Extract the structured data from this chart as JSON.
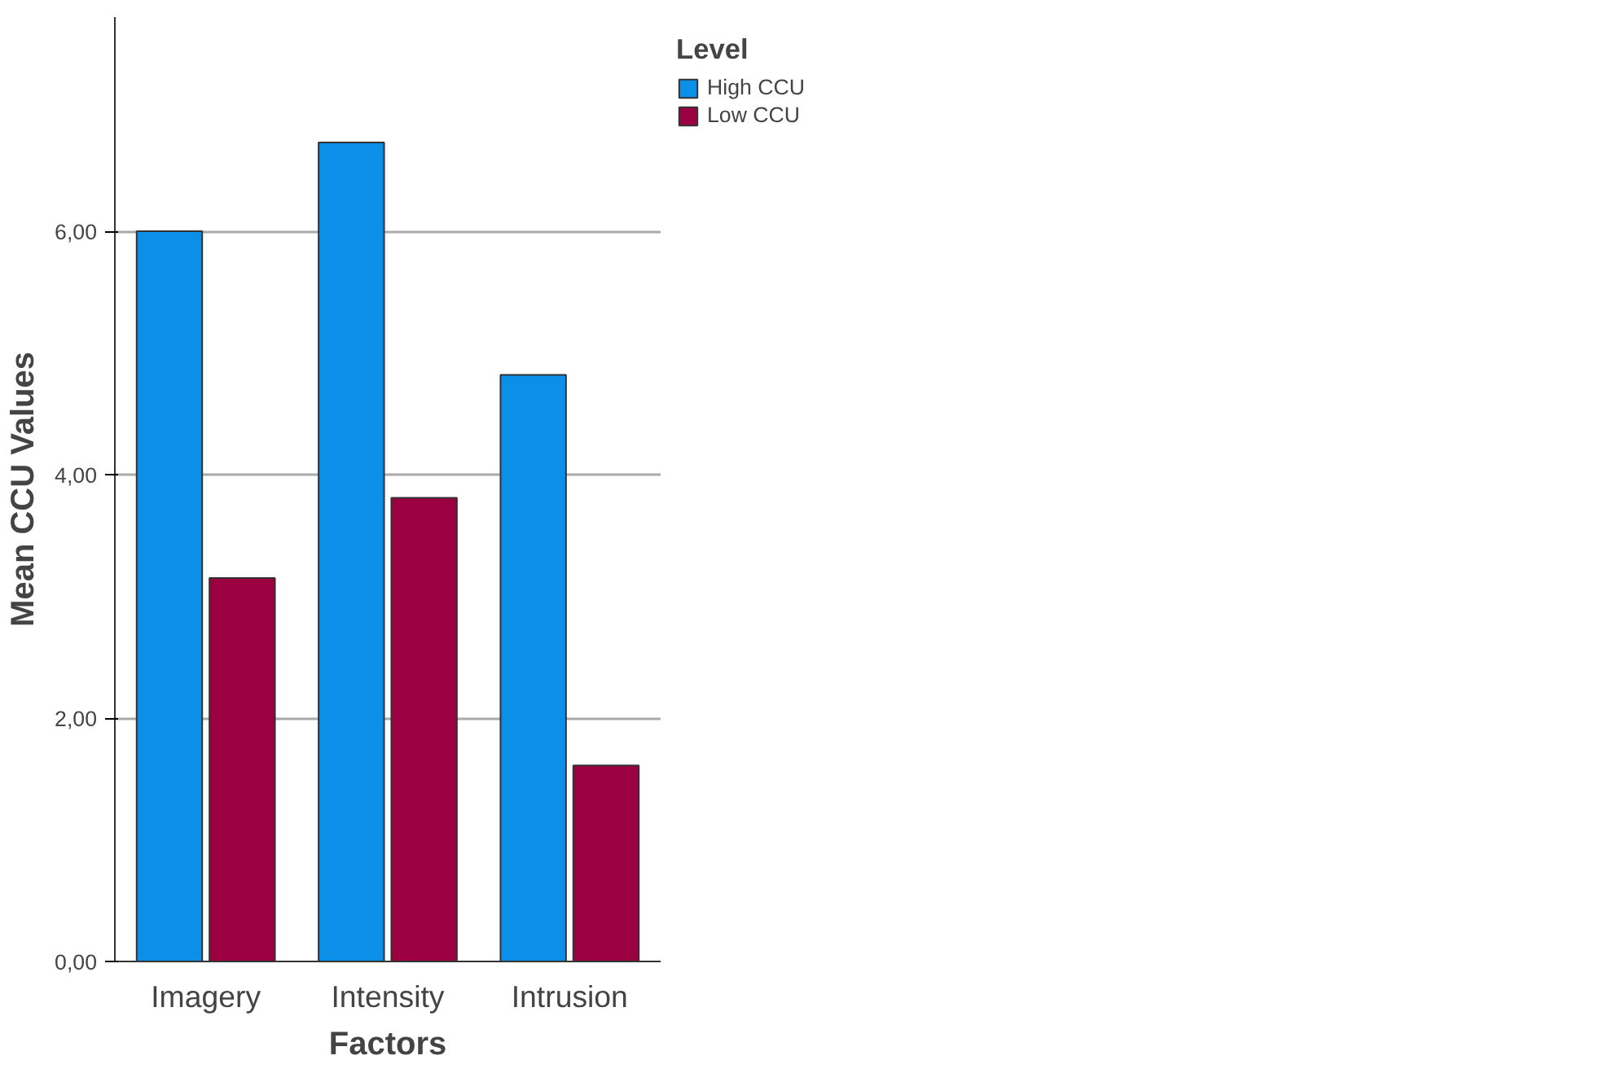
{
  "chart_data": {
    "type": "bar",
    "xlabel": "Factors",
    "ylabel": "Mean CCU Values",
    "legend_title": "Level",
    "categories": [
      "Imagery",
      "Intensity",
      "Intrusion"
    ],
    "series": [
      {
        "name": "High CCU",
        "color": "#0b8fe8",
        "values": [
          6.0,
          6.73,
          4.82
        ]
      },
      {
        "name": "Low CCU",
        "color": "#9b0041",
        "values": [
          3.15,
          3.81,
          1.61
        ]
      }
    ],
    "ylim": [
      0,
      7.76
    ],
    "yticks": [
      {
        "value": 0,
        "label": "0,00"
      },
      {
        "value": 2,
        "label": "2,00"
      },
      {
        "value": 4,
        "label": "4,00"
      },
      {
        "value": 6,
        "label": "6,00"
      }
    ],
    "grid": "y",
    "legend": "top right"
  }
}
